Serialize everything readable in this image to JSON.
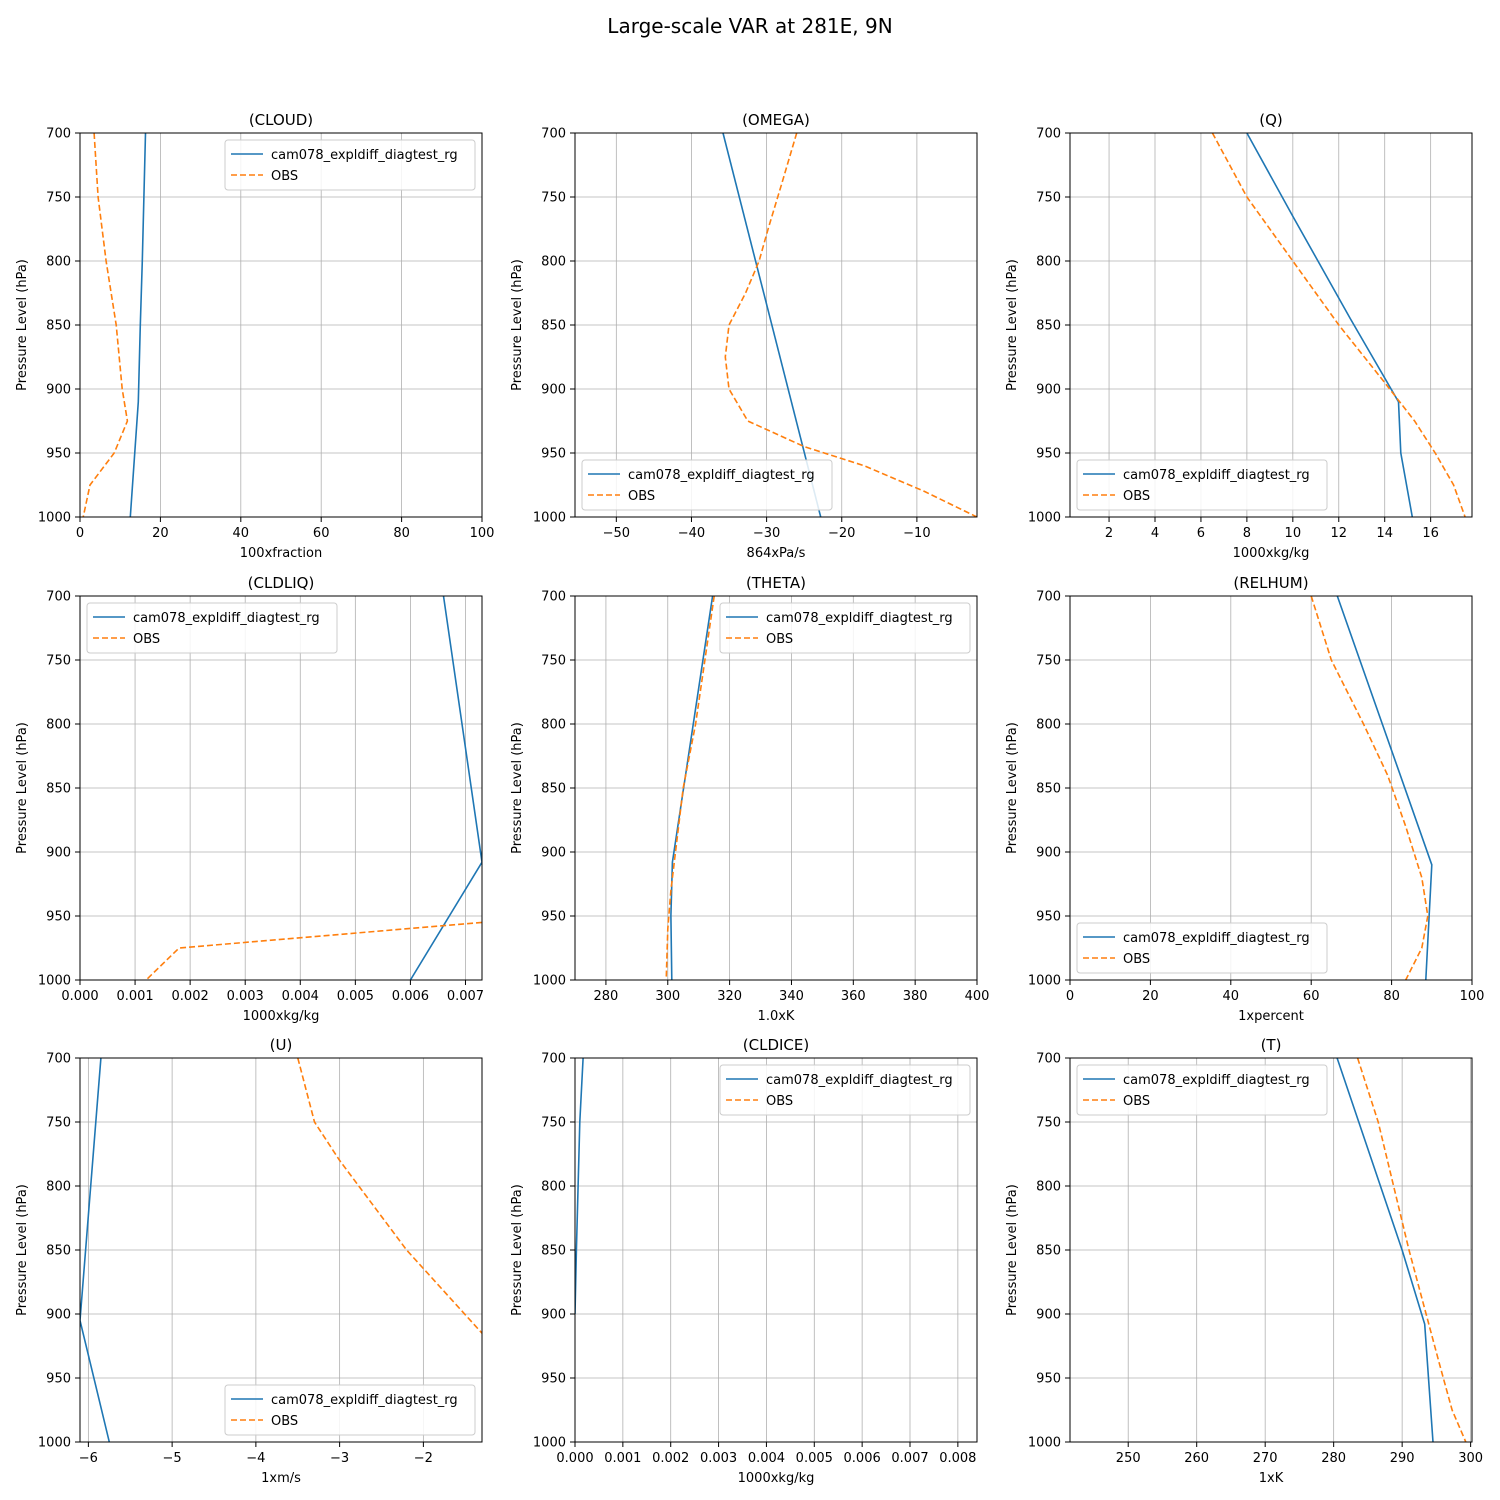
{
  "figure": {
    "title": "Large-scale VAR at 281E, 9N",
    "colors": {
      "model": "#1f77b4",
      "obs": "#ff7f0e",
      "grid": "#b0b0b0"
    }
  },
  "chart_data": [
    {
      "type": "line",
      "title": "(CLOUD)",
      "xlabel": "100xfraction",
      "ylabel": "Pressure Level (hPa)",
      "xlim": [
        0,
        100
      ],
      "ylim": [
        1000,
        700
      ],
      "xticks": [
        0,
        20,
        40,
        60,
        80,
        100
      ],
      "yticks": [
        700,
        750,
        800,
        850,
        900,
        950,
        1000
      ],
      "grid": true,
      "legend": "top-right",
      "series": [
        {
          "name": "cam078_expldiff_diagtest_rg",
          "style": "solid",
          "x": [
            16.3,
            15.5,
            15.0,
            14.5,
            12.5
          ],
          "y": [
            700,
            800,
            850,
            910,
            1000
          ]
        },
        {
          "name": "OBS",
          "style": "dashed",
          "x": [
            3.5,
            4.5,
            6.5,
            9.0,
            10.5,
            11.8,
            8.5,
            2.5,
            0.8
          ],
          "y": [
            700,
            750,
            800,
            850,
            900,
            925,
            950,
            975,
            1000
          ]
        }
      ]
    },
    {
      "type": "line",
      "title": "(OMEGA)",
      "xlabel": "864xPa/s",
      "ylabel": "Pressure Level (hPa)",
      "xlim": [
        -55.5,
        -2.0
      ],
      "ylim": [
        1000,
        700
      ],
      "xticks": [
        -50,
        -40,
        -30,
        -20,
        -10
      ],
      "xticklabels": [
        "−50",
        "−40",
        "−30",
        "−20",
        "−10"
      ],
      "yticks": [
        700,
        750,
        800,
        850,
        900,
        950,
        1000
      ],
      "grid": true,
      "legend": "bottom-left",
      "series": [
        {
          "name": "cam078_expldiff_diagtest_rg",
          "style": "solid",
          "x": [
            -35.8,
            -22.8
          ],
          "y": [
            700,
            1000
          ]
        },
        {
          "name": "OBS",
          "style": "dashed",
          "x": [
            -26.0,
            -28.0,
            -29.8,
            -31.0,
            -32.8,
            -35.0,
            -35.5,
            -35.0,
            -32.5,
            -25.0,
            -17.0,
            -9.0,
            -2.0
          ],
          "y": [
            700,
            740,
            775,
            800,
            825,
            850,
            875,
            900,
            925,
            945,
            960,
            980,
            1000
          ]
        }
      ]
    },
    {
      "type": "line",
      "title": "(Q)",
      "xlabel": "1000xkg/kg",
      "ylabel": "Pressure Level (hPa)",
      "xlim": [
        0.3,
        17.8
      ],
      "ylim": [
        1000,
        700
      ],
      "xticks": [
        2,
        4,
        6,
        8,
        10,
        12,
        14,
        16
      ],
      "yticks": [
        700,
        750,
        800,
        850,
        900,
        950,
        1000
      ],
      "grid": true,
      "legend": "bottom-left",
      "series": [
        {
          "name": "cam078_expldiff_diagtest_rg",
          "style": "solid",
          "x": [
            8.0,
            10.0,
            12.5,
            14.6,
            14.7,
            15.2
          ],
          "y": [
            700,
            765,
            845,
            910,
            950,
            1000
          ]
        },
        {
          "name": "OBS",
          "style": "dashed",
          "x": [
            6.5,
            8.0,
            10.0,
            12.0,
            14.0,
            15.3,
            16.2,
            17.0,
            17.5
          ],
          "y": [
            700,
            750,
            800,
            850,
            895,
            925,
            950,
            975,
            1000
          ]
        }
      ]
    },
    {
      "type": "line",
      "title": "(CLDLIQ)",
      "xlabel": "1000xkg/kg",
      "ylabel": "Pressure Level (hPa)",
      "xlim": [
        0.0,
        0.0073
      ],
      "ylim": [
        1000,
        700
      ],
      "xticks": [
        0.0,
        0.001,
        0.002,
        0.003,
        0.004,
        0.005,
        0.006,
        0.007
      ],
      "xticklabels": [
        "0.000",
        "0.001",
        "0.002",
        "0.003",
        "0.004",
        "0.005",
        "0.006",
        "0.007"
      ],
      "yticks": [
        700,
        750,
        800,
        850,
        900,
        950,
        1000
      ],
      "grid": true,
      "legend": "top-left",
      "series": [
        {
          "name": "cam078_expldiff_diagtest_rg",
          "style": "solid",
          "x": [
            0.0066,
            0.0073,
            0.006
          ],
          "y": [
            700,
            908,
            1000
          ]
        },
        {
          "name": "OBS",
          "style": "dashed",
          "x": [
            0.0073,
            0.0018,
            0.0012
          ],
          "y": [
            955,
            975,
            1000
          ]
        }
      ]
    },
    {
      "type": "line",
      "title": "(THETA)",
      "xlabel": "1.0xK",
      "ylabel": "Pressure Level (hPa)",
      "xlim": [
        270,
        400
      ],
      "ylim": [
        1000,
        700
      ],
      "xticks": [
        280,
        300,
        320,
        340,
        360,
        380,
        400
      ],
      "yticks": [
        700,
        750,
        800,
        850,
        900,
        950,
        1000
      ],
      "grid": true,
      "legend": "top-right",
      "series": [
        {
          "name": "cam078_expldiff_diagtest_rg",
          "style": "solid",
          "x": [
            314.5,
            301.5,
            301.0,
            301.3
          ],
          "y": [
            700,
            908,
            950,
            1000
          ]
        },
        {
          "name": "OBS",
          "style": "dashed",
          "x": [
            315.0,
            309.0,
            305.0,
            302.5,
            301.0,
            300.0,
            299.5
          ],
          "y": [
            700,
            800,
            850,
            900,
            930,
            960,
            1000
          ]
        }
      ]
    },
    {
      "type": "line",
      "title": "(RELHUM)",
      "xlabel": "1xpercent",
      "ylabel": "Pressure Level (hPa)",
      "xlim": [
        0,
        100
      ],
      "ylim": [
        1000,
        700
      ],
      "xticks": [
        0,
        20,
        40,
        60,
        80,
        100
      ],
      "yticks": [
        700,
        750,
        800,
        850,
        900,
        950,
        1000
      ],
      "grid": true,
      "legend": "bottom-left",
      "series": [
        {
          "name": "cam078_expldiff_diagtest_rg",
          "style": "solid",
          "x": [
            66.5,
            90.0,
            88.5
          ],
          "y": [
            700,
            910,
            1000
          ]
        },
        {
          "name": "OBS",
          "style": "dashed",
          "x": [
            60.0,
            65.0,
            73.0,
            79.0,
            83.5,
            87.5,
            89.0,
            87.5,
            83.5
          ],
          "y": [
            700,
            750,
            800,
            840,
            880,
            920,
            950,
            975,
            1000
          ]
        }
      ]
    },
    {
      "type": "line",
      "title": "(U)",
      "xlabel": "1xm/s",
      "ylabel": "Pressure Level (hPa)",
      "xlim": [
        -6.1,
        -1.3
      ],
      "ylim": [
        1000,
        700
      ],
      "xticks": [
        -6,
        -5,
        -4,
        -3,
        -2
      ],
      "xticklabels": [
        "−6",
        "−5",
        "−4",
        "−3",
        "−2"
      ],
      "yticks": [
        700,
        750,
        800,
        850,
        900,
        950,
        1000
      ],
      "grid": true,
      "legend": "bottom-right",
      "series": [
        {
          "name": "cam078_expldiff_diagtest_rg",
          "style": "solid",
          "x": [
            -5.85,
            -6.1,
            -5.75
          ],
          "y": [
            700,
            905,
            1000
          ]
        },
        {
          "name": "OBS",
          "style": "dashed",
          "x": [
            -3.5,
            -3.3,
            -3.0,
            -2.6,
            -2.2,
            -1.3
          ],
          "y": [
            700,
            750,
            780,
            815,
            850,
            915
          ]
        }
      ]
    },
    {
      "type": "line",
      "title": "(CLDICE)",
      "xlabel": "1000xkg/kg",
      "ylabel": "Pressure Level (hPa)",
      "xlim": [
        0.0,
        0.0084
      ],
      "ylim": [
        1000,
        700
      ],
      "xticks": [
        0.0,
        0.001,
        0.002,
        0.003,
        0.004,
        0.005,
        0.006,
        0.007,
        0.008
      ],
      "xticklabels": [
        "0.000",
        "0.001",
        "0.002",
        "0.003",
        "0.004",
        "0.005",
        "0.006",
        "0.007",
        "0.008"
      ],
      "yticks": [
        700,
        750,
        800,
        850,
        900,
        950,
        1000
      ],
      "grid": true,
      "legend": "top-right",
      "series": [
        {
          "name": "cam078_expldiff_diagtest_rg",
          "style": "solid",
          "x": [
            0.00017,
            0.0001,
            3e-05,
            0.0
          ],
          "y": [
            700,
            750,
            850,
            900
          ]
        },
        {
          "name": "OBS",
          "style": "dashed",
          "x": [],
          "y": []
        }
      ]
    },
    {
      "type": "line",
      "title": "(T)",
      "xlabel": "1xK",
      "ylabel": "Pressure Level (hPa)",
      "xlim": [
        241.5,
        300.2
      ],
      "ylim": [
        1000,
        700
      ],
      "xticks": [
        250,
        260,
        270,
        280,
        290,
        300
      ],
      "yticks": [
        700,
        750,
        800,
        850,
        900,
        950,
        1000
      ],
      "grid": true,
      "legend": "top-left",
      "series": [
        {
          "name": "cam078_expldiff_diagtest_rg",
          "style": "solid",
          "x": [
            280.5,
            290.0,
            293.3,
            294.5
          ],
          "y": [
            700,
            850,
            908,
            1000
          ]
        },
        {
          "name": "OBS",
          "style": "dashed",
          "x": [
            283.5,
            286.5,
            291.0,
            293.5,
            295.5,
            297.3,
            299.3
          ],
          "y": [
            700,
            750,
            850,
            900,
            940,
            975,
            1000
          ]
        }
      ]
    }
  ]
}
